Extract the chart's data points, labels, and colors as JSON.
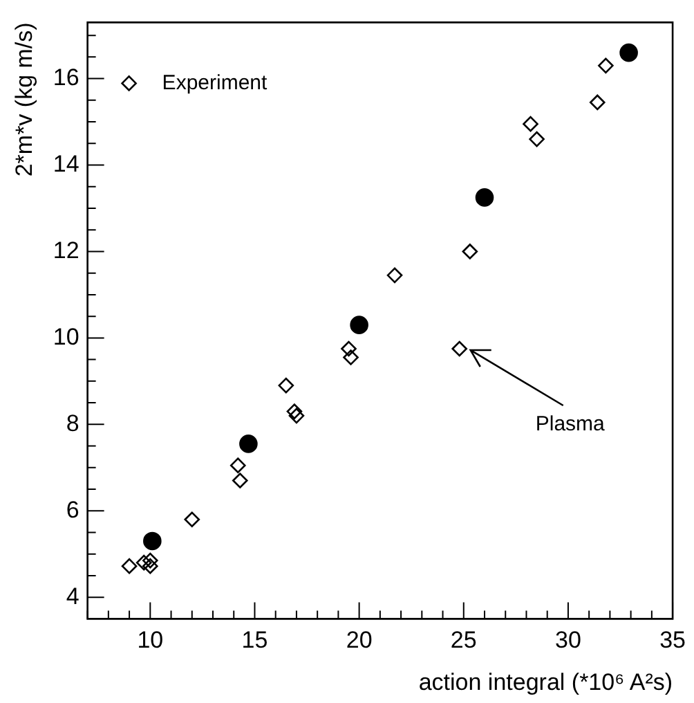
{
  "chart_data": {
    "type": "scatter",
    "xlabel": "action integral (*10⁶ A²s)",
    "ylabel": "2*m*v (kg m/s)",
    "xlim": [
      7,
      35
    ],
    "ylim": [
      3.5,
      17.3
    ],
    "xticks": [
      {
        "value": 7,
        "label": null
      },
      {
        "value": 8,
        "label": null
      },
      {
        "value": 9,
        "label": null
      },
      10,
      {
        "value": 11,
        "label": null
      },
      {
        "value": 12,
        "label": null
      },
      {
        "value": 13,
        "label": null
      },
      {
        "value": 14,
        "label": null
      },
      15,
      {
        "value": 16,
        "label": null
      },
      {
        "value": 17,
        "label": null
      },
      {
        "value": 18,
        "label": null
      },
      {
        "value": 19,
        "label": null
      },
      20,
      {
        "value": 21,
        "label": null
      },
      {
        "value": 22,
        "label": null
      },
      {
        "value": 23,
        "label": null
      },
      {
        "value": 24,
        "label": null
      },
      25,
      {
        "value": 26,
        "label": null
      },
      {
        "value": 27,
        "label": null
      },
      {
        "value": 28,
        "label": null
      },
      {
        "value": 29,
        "label": null
      },
      30,
      {
        "value": 31,
        "label": null
      },
      {
        "value": 32,
        "label": null
      },
      {
        "value": 33,
        "label": null
      },
      {
        "value": 34,
        "label": null
      },
      35
    ],
    "yticks": [
      4,
      {
        "value": 4.5,
        "label": null
      },
      {
        "value": 5,
        "label": null
      },
      {
        "value": 5.5,
        "label": null
      },
      6,
      {
        "value": 6.5,
        "label": null
      },
      {
        "value": 7,
        "label": null
      },
      {
        "value": 7.5,
        "label": null
      },
      8,
      {
        "value": 8.5,
        "label": null
      },
      {
        "value": 9,
        "label": null
      },
      {
        "value": 9.5,
        "label": null
      },
      10,
      {
        "value": 10.5,
        "label": null
      },
      {
        "value": 11,
        "label": null
      },
      {
        "value": 11.5,
        "label": null
      },
      12,
      {
        "value": 12.5,
        "label": null
      },
      {
        "value": 13,
        "label": null
      },
      {
        "value": 13.5,
        "label": null
      },
      14,
      {
        "value": 14.5,
        "label": null
      },
      {
        "value": 15,
        "label": null
      },
      {
        "value": 15.5,
        "label": null
      },
      16,
      {
        "value": 16.5,
        "label": null
      },
      {
        "value": 17,
        "label": null
      }
    ],
    "grid": false,
    "legend": "top left",
    "series": [
      {
        "color": "#000000",
        "marker": "circle",
        "x": [
          10.1,
          14.7,
          20,
          26,
          32.9
        ],
        "values": [
          5.3,
          7.55,
          10.3,
          13.25,
          16.6
        ]
      },
      {
        "name": "Experiment",
        "color": "#000000",
        "marker": "diamond",
        "x": [
          9,
          9.7,
          10,
          10,
          12,
          14.2,
          14.3,
          16.5,
          16.9,
          17,
          19.5,
          19.6,
          21.7,
          24.8,
          25.3,
          28.2,
          28.5,
          31.4,
          31.8
        ],
        "values": [
          4.72,
          4.8,
          4.85,
          4.72,
          5.8,
          7.05,
          6.7,
          8.9,
          8.3,
          8.2,
          9.75,
          9.55,
          11.45,
          9.75,
          12.0,
          14.95,
          14.6,
          15.45,
          16.3
        ]
      }
    ],
    "annotations": [
      {
        "text": "Plasma",
        "x": 24.8,
        "y": 9.75
      }
    ]
  }
}
